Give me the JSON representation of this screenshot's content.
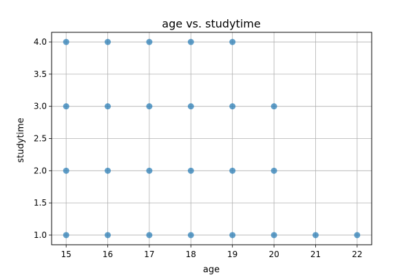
{
  "chart_data": {
    "type": "scatter",
    "title": "age vs. studytime",
    "xlabel": "age",
    "ylabel": "studytime",
    "xlim": [
      14.65,
      22.35
    ],
    "ylim": [
      0.85,
      4.15
    ],
    "x_ticks": [
      15,
      16,
      17,
      18,
      19,
      20,
      21,
      22
    ],
    "y_ticks": [
      1.0,
      1.5,
      2.0,
      2.5,
      3.0,
      3.5,
      4.0
    ],
    "x_tick_labels": [
      "15",
      "16",
      "17",
      "18",
      "19",
      "20",
      "21",
      "22"
    ],
    "y_tick_labels": [
      "1.0",
      "1.5",
      "2.0",
      "2.5",
      "3.0",
      "3.5",
      "4.0"
    ],
    "grid": true,
    "marker_color": "#1f77b4",
    "points": [
      {
        "x": 15,
        "y": 4.0
      },
      {
        "x": 16,
        "y": 4.0
      },
      {
        "x": 17,
        "y": 4.0
      },
      {
        "x": 18,
        "y": 4.0
      },
      {
        "x": 19,
        "y": 4.0
      },
      {
        "x": 15,
        "y": 3.0
      },
      {
        "x": 16,
        "y": 3.0
      },
      {
        "x": 17,
        "y": 3.0
      },
      {
        "x": 18,
        "y": 3.0
      },
      {
        "x": 19,
        "y": 3.0
      },
      {
        "x": 20,
        "y": 3.0
      },
      {
        "x": 15,
        "y": 2.0
      },
      {
        "x": 16,
        "y": 2.0
      },
      {
        "x": 17,
        "y": 2.0
      },
      {
        "x": 18,
        "y": 2.0
      },
      {
        "x": 19,
        "y": 2.0
      },
      {
        "x": 20,
        "y": 2.0
      },
      {
        "x": 15,
        "y": 1.0
      },
      {
        "x": 16,
        "y": 1.0
      },
      {
        "x": 17,
        "y": 1.0
      },
      {
        "x": 18,
        "y": 1.0
      },
      {
        "x": 19,
        "y": 1.0
      },
      {
        "x": 20,
        "y": 1.0
      },
      {
        "x": 21,
        "y": 1.0
      },
      {
        "x": 22,
        "y": 1.0
      }
    ]
  }
}
